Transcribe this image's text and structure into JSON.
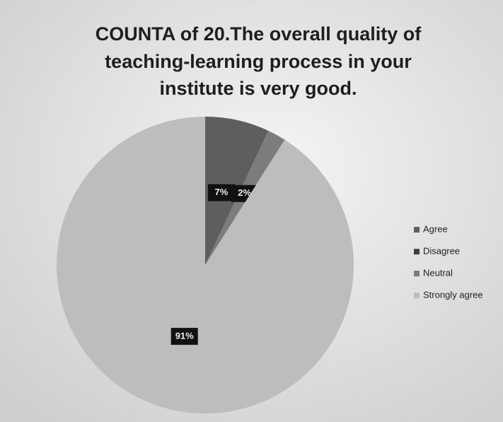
{
  "chart_data": {
    "type": "pie",
    "title": [
      "COUNTA of 20.The overall quality of",
      "teaching-learning process in your",
      "institute is very good."
    ],
    "categories": [
      "Agree",
      "Disagree",
      "Neutral",
      "Strongly agree"
    ],
    "values": [
      7,
      0,
      2,
      91
    ],
    "value_labels": [
      "7%",
      null,
      "2%",
      "91%"
    ],
    "colors": [
      "#5e5e5e",
      "#3f3f3f",
      "#7c7c7c",
      "#bdbdbd"
    ],
    "legend": "right"
  }
}
